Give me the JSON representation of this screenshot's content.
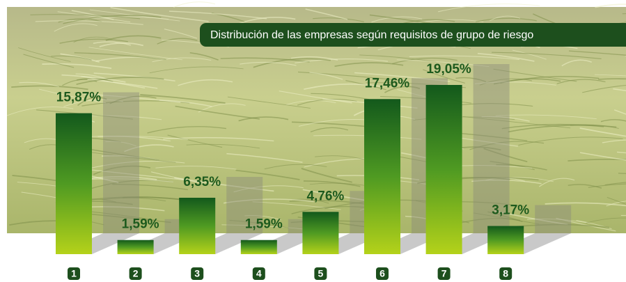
{
  "chart_data": {
    "type": "bar",
    "title": "Distribución de las empresas según requisitos de grupo de riesgo",
    "categories": [
      "1",
      "2",
      "3",
      "4",
      "5",
      "6",
      "7",
      "8"
    ],
    "values": [
      15.87,
      1.59,
      6.35,
      1.59,
      4.76,
      17.46,
      19.05,
      3.17
    ],
    "value_labels": [
      "15,87%",
      "1,59%",
      "6,35%",
      "1,59%",
      "4,76%",
      "17,46%",
      "19,05%",
      "3,17%"
    ]
  }
}
